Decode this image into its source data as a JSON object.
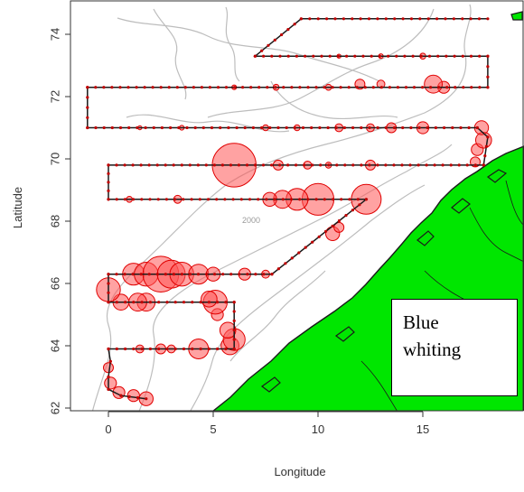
{
  "map": {
    "species_label_line1": "Blue",
    "species_label_line2": "whiting",
    "x_axis_title": "Longitude",
    "y_axis_title": "Latitude",
    "x_ticks": [
      "0",
      "5",
      "10",
      "15"
    ],
    "y_ticks": [
      "62",
      "64",
      "66",
      "68",
      "70",
      "72",
      "74"
    ],
    "contour_label": "2000",
    "colors": {
      "land": "#00e600",
      "coast": "#1a1a1a",
      "contour": "#bdbdbd",
      "track": "#1a1a1a",
      "catch": "#ff5555",
      "catch_edge": "#e00000"
    },
    "x_range": [
      -1.2,
      19.6
    ],
    "y_range": [
      61.9,
      75.0
    ],
    "track": [
      [
        1.8,
        62.3
      ],
      [
        0.6,
        62.4
      ],
      [
        0.0,
        62.6
      ],
      [
        0.0,
        63.0
      ],
      [
        0.1,
        63.5
      ],
      [
        0.0,
        63.9
      ],
      [
        6.0,
        63.9
      ],
      [
        6.0,
        65.4
      ],
      [
        0.0,
        65.4
      ],
      [
        0.0,
        66.3
      ],
      [
        7.8,
        66.3
      ],
      [
        12.3,
        68.7
      ],
      [
        0.0,
        68.7
      ],
      [
        0.0,
        69.8
      ],
      [
        17.9,
        69.8
      ],
      [
        18.1,
        70.7
      ],
      [
        17.6,
        71.0
      ],
      [
        -1.0,
        71.0
      ],
      [
        -1.0,
        72.3
      ],
      [
        18.1,
        72.3
      ],
      [
        18.1,
        73.3
      ],
      [
        7.0,
        73.3
      ],
      [
        9.2,
        74.5
      ],
      [
        18.1,
        74.5
      ]
    ],
    "catches": [
      [
        1.8,
        62.3,
        0.35
      ],
      [
        1.2,
        62.4,
        0.3
      ],
      [
        0.5,
        62.5,
        0.3
      ],
      [
        0.1,
        62.8,
        0.3
      ],
      [
        0.0,
        63.3,
        0.25
      ],
      [
        1.5,
        63.9,
        0.2
      ],
      [
        2.5,
        63.9,
        0.25
      ],
      [
        3.0,
        63.9,
        0.2
      ],
      [
        4.3,
        63.9,
        0.5
      ],
      [
        5.8,
        64.0,
        0.45
      ],
      [
        6.0,
        64.2,
        0.55
      ],
      [
        5.7,
        64.5,
        0.4
      ],
      [
        5.2,
        65.0,
        0.3
      ],
      [
        5.1,
        65.4,
        0.6
      ],
      [
        4.8,
        65.5,
        0.4
      ],
      [
        1.8,
        65.4,
        0.45
      ],
      [
        1.4,
        65.4,
        0.45
      ],
      [
        0.6,
        65.4,
        0.4
      ],
      [
        0.0,
        65.8,
        0.6
      ],
      [
        1.2,
        66.3,
        0.55
      ],
      [
        1.8,
        66.3,
        0.6
      ],
      [
        2.5,
        66.3,
        0.9
      ],
      [
        3.0,
        66.3,
        0.7
      ],
      [
        3.5,
        66.3,
        0.6
      ],
      [
        4.3,
        66.3,
        0.5
      ],
      [
        5.0,
        66.3,
        0.35
      ],
      [
        6.5,
        66.3,
        0.3
      ],
      [
        7.5,
        66.3,
        0.2
      ],
      [
        10.7,
        67.6,
        0.35
      ],
      [
        11.0,
        67.8,
        0.25
      ],
      [
        12.3,
        68.7,
        0.75
      ],
      [
        10.0,
        68.7,
        0.8
      ],
      [
        9.0,
        68.7,
        0.55
      ],
      [
        8.3,
        68.7,
        0.45
      ],
      [
        7.7,
        68.7,
        0.35
      ],
      [
        3.3,
        68.7,
        0.2
      ],
      [
        1.0,
        68.7,
        0.15
      ],
      [
        6.0,
        69.8,
        1.1
      ],
      [
        8.1,
        69.8,
        0.25
      ],
      [
        9.5,
        69.8,
        0.2
      ],
      [
        10.5,
        69.8,
        0.15
      ],
      [
        12.5,
        69.8,
        0.25
      ],
      [
        17.5,
        69.9,
        0.25
      ],
      [
        17.6,
        70.3,
        0.3
      ],
      [
        17.9,
        70.6,
        0.4
      ],
      [
        17.8,
        71.0,
        0.35
      ],
      [
        15.0,
        71.0,
        0.3
      ],
      [
        13.5,
        71.0,
        0.25
      ],
      [
        12.5,
        71.0,
        0.2
      ],
      [
        11.0,
        71.0,
        0.2
      ],
      [
        9.0,
        71.0,
        0.15
      ],
      [
        7.5,
        71.0,
        0.15
      ],
      [
        3.5,
        71.0,
        0.12
      ],
      [
        1.5,
        71.0,
        0.1
      ],
      [
        16.0,
        72.3,
        0.3
      ],
      [
        15.5,
        72.4,
        0.45
      ],
      [
        13.0,
        72.4,
        0.2
      ],
      [
        12.0,
        72.4,
        0.25
      ],
      [
        10.5,
        72.3,
        0.15
      ],
      [
        8.0,
        72.3,
        0.15
      ],
      [
        6.0,
        72.3,
        0.12
      ],
      [
        15.0,
        73.3,
        0.15
      ],
      [
        13.0,
        73.3,
        0.12
      ],
      [
        11.0,
        73.3,
        0.1
      ]
    ]
  }
}
